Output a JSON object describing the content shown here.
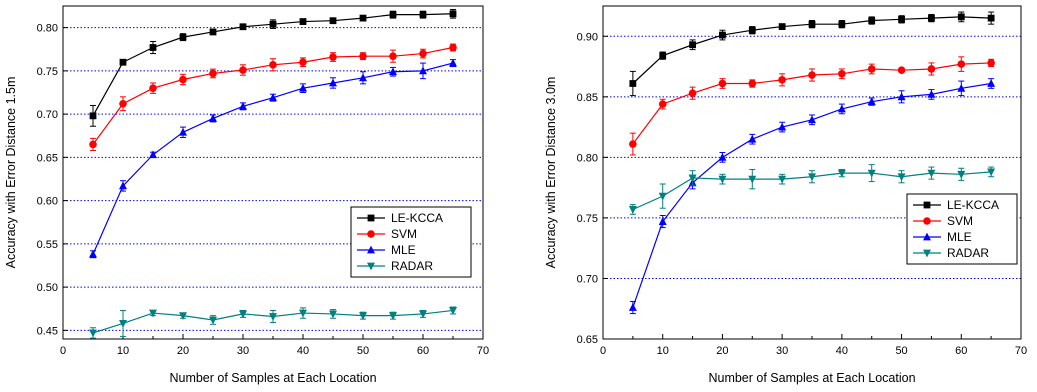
{
  "chart_data": [
    {
      "type": "line",
      "title": "",
      "xlabel": "Number of Samples at Each Location",
      "ylabel": "Accuracy with Error Distance 1.5m",
      "xlim": [
        0,
        70
      ],
      "ylim": [
        0.44,
        0.825
      ],
      "xticks": [
        "0",
        "10",
        "20",
        "30",
        "40",
        "50",
        "60",
        "70"
      ],
      "yticks": [
        "0.45",
        "0.50",
        "0.55",
        "0.60",
        "0.65",
        "0.70",
        "0.75",
        "0.80"
      ],
      "grid": "horizontal dotted",
      "legend_position": "bottom-right",
      "x": [
        5,
        10,
        15,
        20,
        25,
        30,
        35,
        40,
        45,
        50,
        55,
        60,
        65
      ],
      "series": [
        {
          "name": "LE-KCCA",
          "color": "#000000",
          "marker": "square",
          "values": [
            0.698,
            0.76,
            0.777,
            0.789,
            0.795,
            0.801,
            0.804,
            0.807,
            0.808,
            0.811,
            0.815,
            0.815,
            0.816
          ],
          "errors": [
            0.012,
            0.002,
            0.007,
            0.004,
            0.003,
            0.002,
            0.005,
            0.003,
            0.003,
            0.003,
            0.004,
            0.004,
            0.005
          ]
        },
        {
          "name": "SVM",
          "color": "#ff0000",
          "marker": "circle",
          "values": [
            0.665,
            0.712,
            0.73,
            0.74,
            0.747,
            0.751,
            0.757,
            0.76,
            0.766,
            0.767,
            0.767,
            0.77,
            0.777
          ],
          "errors": [
            0.007,
            0.008,
            0.006,
            0.006,
            0.005,
            0.006,
            0.007,
            0.005,
            0.005,
            0.004,
            0.007,
            0.005,
            0.004
          ]
        },
        {
          "name": "MLE",
          "color": "#0000ff",
          "marker": "triangle-up",
          "values": [
            0.538,
            0.617,
            0.653,
            0.679,
            0.695,
            0.709,
            0.719,
            0.73,
            0.736,
            0.742,
            0.749,
            0.75,
            0.759
          ],
          "errors": [
            0.004,
            0.006,
            0.003,
            0.006,
            0.004,
            0.004,
            0.004,
            0.005,
            0.006,
            0.007,
            0.005,
            0.009,
            0.004
          ]
        },
        {
          "name": "RADAR",
          "color": "#008080",
          "marker": "triangle-down",
          "values": [
            0.447,
            0.458,
            0.47,
            0.467,
            0.462,
            0.469,
            0.466,
            0.47,
            0.469,
            0.467,
            0.467,
            0.469,
            0.473
          ],
          "errors": [
            0.006,
            0.015,
            0.003,
            0.003,
            0.005,
            0.004,
            0.007,
            0.006,
            0.005,
            0.004,
            0.004,
            0.004,
            0.004
          ]
        }
      ]
    },
    {
      "type": "line",
      "title": "",
      "xlabel": "Number of Samples at Each Location",
      "ylabel": "Accuracy with Error Distance 3.0m",
      "xlim": [
        0,
        70
      ],
      "ylim": [
        0.65,
        0.925
      ],
      "xticks": [
        "0",
        "10",
        "20",
        "30",
        "40",
        "50",
        "60",
        "70"
      ],
      "yticks": [
        "0.65",
        "0.70",
        "0.75",
        "0.80",
        "0.85",
        "0.90"
      ],
      "grid": "horizontal dotted",
      "legend_position": "center-right",
      "x": [
        5,
        10,
        15,
        20,
        25,
        30,
        35,
        40,
        45,
        50,
        55,
        60,
        65
      ],
      "series": [
        {
          "name": "LE-KCCA",
          "color": "#000000",
          "marker": "square",
          "values": [
            0.861,
            0.884,
            0.893,
            0.901,
            0.905,
            0.908,
            0.91,
            0.91,
            0.913,
            0.914,
            0.915,
            0.916,
            0.915
          ],
          "errors": [
            0.01,
            0.003,
            0.004,
            0.004,
            0.003,
            0.002,
            0.003,
            0.003,
            0.003,
            0.003,
            0.003,
            0.004,
            0.005
          ]
        },
        {
          "name": "SVM",
          "color": "#ff0000",
          "marker": "circle",
          "values": [
            0.811,
            0.844,
            0.853,
            0.861,
            0.861,
            0.864,
            0.868,
            0.869,
            0.873,
            0.872,
            0.873,
            0.877,
            0.878
          ],
          "errors": [
            0.009,
            0.004,
            0.005,
            0.004,
            0.003,
            0.005,
            0.005,
            0.004,
            0.004,
            0.001,
            0.005,
            0.006,
            0.003
          ]
        },
        {
          "name": "MLE",
          "color": "#0000ff",
          "marker": "triangle-up",
          "values": [
            0.676,
            0.747,
            0.779,
            0.8,
            0.815,
            0.825,
            0.831,
            0.84,
            0.846,
            0.85,
            0.852,
            0.857,
            0.861
          ],
          "errors": [
            0.005,
            0.005,
            0.005,
            0.004,
            0.004,
            0.004,
            0.004,
            0.004,
            0.003,
            0.005,
            0.004,
            0.006,
            0.004
          ]
        },
        {
          "name": "RADAR",
          "color": "#008080",
          "marker": "triangle-down",
          "values": [
            0.757,
            0.768,
            0.783,
            0.782,
            0.782,
            0.782,
            0.784,
            0.787,
            0.787,
            0.784,
            0.787,
            0.786,
            0.788
          ],
          "errors": [
            0.004,
            0.01,
            0.006,
            0.004,
            0.008,
            0.004,
            0.005,
            0.003,
            0.007,
            0.005,
            0.005,
            0.005,
            0.004
          ]
        }
      ]
    }
  ]
}
